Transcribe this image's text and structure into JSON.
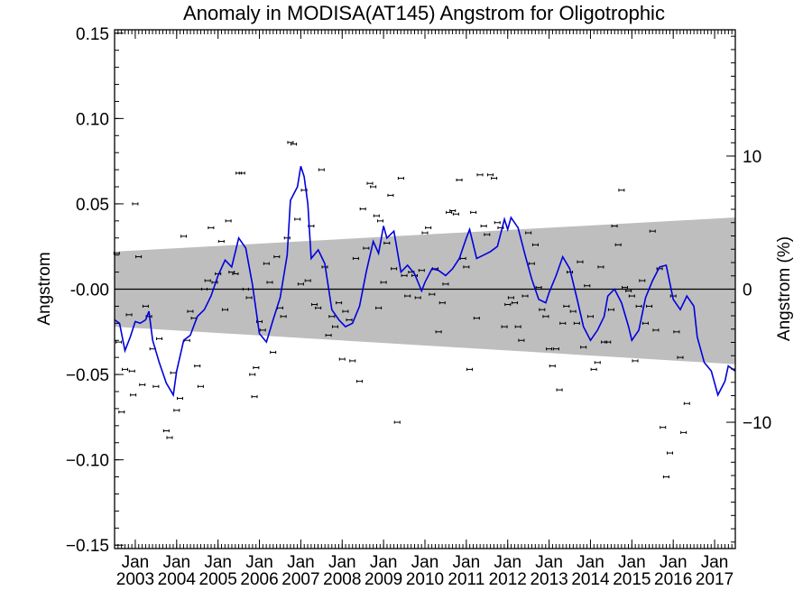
{
  "chart_data": {
    "type": "line",
    "title": "Anomaly in MODISA(AT145) Angstrom for Oligotrophic",
    "ylabel": "Angstrom",
    "ylabel_right": "Angstrom (%)",
    "ylim": [
      -0.152,
      0.152
    ],
    "y_ticks": [
      0.15,
      0.1,
      0.05,
      -0.0,
      -0.05,
      -0.1,
      -0.15
    ],
    "y_tick_labels": [
      "0.15",
      "0.10",
      "0.05",
      "-0.00",
      "−0.05",
      "−0.10",
      "−0.15"
    ],
    "right_ticks": [
      10,
      0,
      -10
    ],
    "right_tick_labels": [
      "10",
      "0",
      "−10"
    ],
    "right_scale_fraction_per_unit": 0.0078,
    "xlim": [
      2002.5,
      2017.5
    ],
    "x_ticks": [
      2003,
      2004,
      2005,
      2006,
      2007,
      2008,
      2009,
      2010,
      2011,
      2012,
      2013,
      2014,
      2015,
      2016,
      2017
    ],
    "x_tick_month": "Jan",
    "x_tick_years": [
      "2003",
      "2004",
      "2005",
      "2006",
      "2007",
      "2008",
      "2009",
      "2010",
      "2011",
      "2012",
      "2013",
      "2014",
      "2015",
      "2016",
      "2017"
    ],
    "zero_line": 0,
    "band": {
      "color": "#bebebe",
      "x": [
        2002.5,
        2017.5
      ],
      "upper": [
        0.022,
        0.042
      ],
      "lower": [
        -0.022,
        -0.044
      ]
    },
    "series": [
      {
        "color": "#0000dd",
        "style": "line",
        "points": [
          [
            2002.5,
            -0.018
          ],
          [
            2002.62,
            -0.02
          ],
          [
            2002.75,
            -0.036
          ],
          [
            2002.88,
            -0.028
          ],
          [
            2003.0,
            -0.019
          ],
          [
            2003.12,
            -0.02
          ],
          [
            2003.25,
            -0.018
          ],
          [
            2003.33,
            -0.013
          ],
          [
            2003.42,
            -0.03
          ],
          [
            2003.58,
            -0.043
          ],
          [
            2003.75,
            -0.055
          ],
          [
            2003.92,
            -0.062
          ],
          [
            2004.0,
            -0.048
          ],
          [
            2004.17,
            -0.03
          ],
          [
            2004.33,
            -0.027
          ],
          [
            2004.5,
            -0.016
          ],
          [
            2004.67,
            -0.012
          ],
          [
            2004.83,
            -0.004
          ],
          [
            2005.0,
            0.008
          ],
          [
            2005.17,
            0.017
          ],
          [
            2005.33,
            0.013
          ],
          [
            2005.5,
            0.03
          ],
          [
            2005.67,
            0.024
          ],
          [
            2005.83,
            0.003
          ],
          [
            2006.0,
            -0.026
          ],
          [
            2006.17,
            -0.031
          ],
          [
            2006.33,
            -0.018
          ],
          [
            2006.5,
            -0.005
          ],
          [
            2006.67,
            0.02
          ],
          [
            2006.75,
            0.052
          ],
          [
            2006.92,
            0.06
          ],
          [
            2007.0,
            0.072
          ],
          [
            2007.08,
            0.066
          ],
          [
            2007.17,
            0.05
          ],
          [
            2007.25,
            0.018
          ],
          [
            2007.42,
            0.023
          ],
          [
            2007.58,
            0.015
          ],
          [
            2007.75,
            -0.012
          ],
          [
            2007.92,
            -0.018
          ],
          [
            2008.08,
            -0.022
          ],
          [
            2008.25,
            -0.02
          ],
          [
            2008.42,
            -0.01
          ],
          [
            2008.58,
            0.01
          ],
          [
            2008.75,
            0.028
          ],
          [
            2008.88,
            0.021
          ],
          [
            2009.0,
            0.037
          ],
          [
            2009.08,
            0.03
          ],
          [
            2009.25,
            0.034
          ],
          [
            2009.42,
            0.01
          ],
          [
            2009.58,
            0.014
          ],
          [
            2009.75,
            0.009
          ],
          [
            2009.92,
            -0.001
          ],
          [
            2010.0,
            0.004
          ],
          [
            2010.17,
            0.012
          ],
          [
            2010.33,
            0.011
          ],
          [
            2010.5,
            0.008
          ],
          [
            2010.67,
            0.012
          ],
          [
            2010.83,
            0.018
          ],
          [
            2011.0,
            0.03
          ],
          [
            2011.08,
            0.035
          ],
          [
            2011.25,
            0.018
          ],
          [
            2011.42,
            0.02
          ],
          [
            2011.58,
            0.022
          ],
          [
            2011.75,
            0.025
          ],
          [
            2011.92,
            0.041
          ],
          [
            2012.0,
            0.035
          ],
          [
            2012.08,
            0.042
          ],
          [
            2012.25,
            0.036
          ],
          [
            2012.42,
            0.02
          ],
          [
            2012.58,
            0.006
          ],
          [
            2012.75,
            -0.006
          ],
          [
            2012.92,
            -0.008
          ],
          [
            2013.0,
            -0.002
          ],
          [
            2013.17,
            0.008
          ],
          [
            2013.33,
            0.019
          ],
          [
            2013.5,
            0.012
          ],
          [
            2013.67,
            -0.005
          ],
          [
            2013.83,
            -0.022
          ],
          [
            2014.0,
            -0.03
          ],
          [
            2014.17,
            -0.024
          ],
          [
            2014.33,
            -0.016
          ],
          [
            2014.42,
            -0.004
          ],
          [
            2014.58,
            0.0
          ],
          [
            2014.75,
            -0.008
          ],
          [
            2014.92,
            -0.022
          ],
          [
            2015.0,
            -0.03
          ],
          [
            2015.17,
            -0.024
          ],
          [
            2015.33,
            -0.005
          ],
          [
            2015.5,
            0.005
          ],
          [
            2015.67,
            0.013
          ],
          [
            2015.83,
            0.014
          ],
          [
            2016.0,
            -0.006
          ],
          [
            2016.17,
            -0.012
          ],
          [
            2016.33,
            -0.004
          ],
          [
            2016.5,
            -0.01
          ],
          [
            2016.58,
            -0.028
          ],
          [
            2016.75,
            -0.043
          ],
          [
            2016.92,
            -0.048
          ],
          [
            2017.08,
            -0.062
          ],
          [
            2017.25,
            -0.054
          ],
          [
            2017.33,
            -0.045
          ],
          [
            2017.5,
            -0.048
          ]
        ]
      },
      {
        "color": "#000000",
        "style": "errorbar-markers",
        "points": [
          [
            2002.55,
            0.021
          ],
          [
            2002.6,
            -0.031
          ],
          [
            2002.67,
            -0.072
          ],
          [
            2002.75,
            -0.047
          ],
          [
            2002.85,
            -0.015
          ],
          [
            2002.92,
            -0.048
          ],
          [
            2002.95,
            -0.062
          ],
          [
            2003.0,
            0.05
          ],
          [
            2003.08,
            0.019
          ],
          [
            2003.17,
            -0.056
          ],
          [
            2003.25,
            -0.01
          ],
          [
            2003.33,
            -0.016
          ],
          [
            2003.42,
            -0.035
          ],
          [
            2003.5,
            -0.057
          ],
          [
            2003.58,
            -0.029
          ],
          [
            2003.75,
            -0.083
          ],
          [
            2003.83,
            -0.087
          ],
          [
            2003.92,
            -0.049
          ],
          [
            2004.0,
            -0.071
          ],
          [
            2004.08,
            -0.064
          ],
          [
            2004.17,
            0.031
          ],
          [
            2004.25,
            -0.03
          ],
          [
            2004.33,
            -0.013
          ],
          [
            2004.42,
            -0.017
          ],
          [
            2004.5,
            -0.045
          ],
          [
            2004.58,
            -0.057
          ],
          [
            2004.67,
            0.0
          ],
          [
            2004.75,
            0.005
          ],
          [
            2004.83,
            0.036
          ],
          [
            2004.92,
            0.004
          ],
          [
            2005.0,
            0.009
          ],
          [
            2005.08,
            0.028
          ],
          [
            2005.17,
            -0.012
          ],
          [
            2005.25,
            0.04
          ],
          [
            2005.33,
            0.01
          ],
          [
            2005.42,
            0.009
          ],
          [
            2005.5,
            0.068
          ],
          [
            2005.58,
            0.068
          ],
          [
            2005.67,
            0.0
          ],
          [
            2005.75,
            -0.005
          ],
          [
            2005.83,
            -0.05
          ],
          [
            2005.88,
            -0.063
          ],
          [
            2005.92,
            -0.046
          ],
          [
            2006.0,
            -0.019
          ],
          [
            2006.08,
            -0.024
          ],
          [
            2006.17,
            0.015
          ],
          [
            2006.25,
            0.004
          ],
          [
            2006.33,
            -0.037
          ],
          [
            2006.42,
            0.019
          ],
          [
            2006.5,
            -0.011
          ],
          [
            2006.58,
            -0.016
          ],
          [
            2006.67,
            0.03
          ],
          [
            2006.75,
            0.086
          ],
          [
            2006.83,
            0.085
          ],
          [
            2006.92,
            0.041
          ],
          [
            2007.0,
            0.003
          ],
          [
            2007.08,
            0.058
          ],
          [
            2007.17,
            0.005
          ],
          [
            2007.25,
            0.037
          ],
          [
            2007.33,
            -0.009
          ],
          [
            2007.42,
            -0.011
          ],
          [
            2007.5,
            0.07
          ],
          [
            2007.58,
            0.013
          ],
          [
            2007.67,
            -0.027
          ],
          [
            2007.75,
            -0.016
          ],
          [
            2007.83,
            -0.022
          ],
          [
            2007.92,
            -0.008
          ],
          [
            2008.0,
            -0.041
          ],
          [
            2008.08,
            -0.013
          ],
          [
            2008.17,
            -0.018
          ],
          [
            2008.25,
            -0.042
          ],
          [
            2008.33,
            0.018
          ],
          [
            2008.42,
            -0.054
          ],
          [
            2008.5,
            0.047
          ],
          [
            2008.58,
            0.024
          ],
          [
            2008.67,
            0.062
          ],
          [
            2008.75,
            0.06
          ],
          [
            2008.83,
            0.043
          ],
          [
            2008.88,
            -0.011
          ],
          [
            2008.92,
            0.04
          ],
          [
            2009.0,
            0.004
          ],
          [
            2009.08,
            0.027
          ],
          [
            2009.17,
            0.055
          ],
          [
            2009.25,
            0.012
          ],
          [
            2009.33,
            -0.078
          ],
          [
            2009.42,
            0.065
          ],
          [
            2009.5,
            0.008
          ],
          [
            2009.58,
            -0.004
          ],
          [
            2009.67,
            0.01
          ],
          [
            2009.75,
            0.008
          ],
          [
            2009.83,
            -0.005
          ],
          [
            2009.92,
            0.011
          ],
          [
            2010.0,
            0.033
          ],
          [
            2010.08,
            0.036
          ],
          [
            2010.17,
            -0.003
          ],
          [
            2010.25,
            0.012
          ],
          [
            2010.33,
            -0.025
          ],
          [
            2010.42,
            -0.008
          ],
          [
            2010.5,
            0.003
          ],
          [
            2010.58,
            0.045
          ],
          [
            2010.67,
            0.046
          ],
          [
            2010.75,
            0.044
          ],
          [
            2010.83,
            0.064
          ],
          [
            2010.92,
            0.018
          ],
          [
            2011.0,
            0.013
          ],
          [
            2011.08,
            -0.047
          ],
          [
            2011.17,
            0.045
          ],
          [
            2011.25,
            -0.017
          ],
          [
            2011.33,
            0.067
          ],
          [
            2011.42,
            0.037
          ],
          [
            2011.5,
            0.032
          ],
          [
            2011.58,
            0.067
          ],
          [
            2011.67,
            0.065
          ],
          [
            2011.75,
            0.039
          ],
          [
            2011.83,
            0.036
          ],
          [
            2011.92,
            -0.022
          ],
          [
            2012.0,
            -0.009
          ],
          [
            2012.08,
            -0.005
          ],
          [
            2012.17,
            -0.008
          ],
          [
            2012.25,
            -0.022
          ],
          [
            2012.33,
            -0.03
          ],
          [
            2012.42,
            -0.004
          ],
          [
            2012.5,
            0.033
          ],
          [
            2012.58,
            0.015
          ],
          [
            2012.67,
            0.026
          ],
          [
            2012.75,
            0.001
          ],
          [
            2012.83,
            -0.012
          ],
          [
            2012.92,
            -0.016
          ],
          [
            2013.0,
            -0.035
          ],
          [
            2013.08,
            -0.045
          ],
          [
            2013.17,
            -0.035
          ],
          [
            2013.25,
            -0.059
          ],
          [
            2013.33,
            -0.02
          ],
          [
            2013.42,
            -0.01
          ],
          [
            2013.5,
            0.01
          ],
          [
            2013.58,
            -0.013
          ],
          [
            2013.67,
            -0.02
          ],
          [
            2013.75,
            0.016
          ],
          [
            2013.83,
            -0.034
          ],
          [
            2013.92,
            0.002
          ],
          [
            2014.0,
            -0.016
          ],
          [
            2014.08,
            -0.047
          ],
          [
            2014.17,
            -0.043
          ],
          [
            2014.25,
            0.013
          ],
          [
            2014.33,
            -0.031
          ],
          [
            2014.42,
            -0.031
          ],
          [
            2014.5,
            -0.012
          ],
          [
            2014.58,
            0.037
          ],
          [
            2014.67,
            0.026
          ],
          [
            2014.75,
            0.058
          ],
          [
            2014.83,
            0.001
          ],
          [
            2014.92,
            -0.001
          ],
          [
            2015.0,
            -0.004
          ],
          [
            2015.08,
            -0.042
          ],
          [
            2015.17,
            -0.01
          ],
          [
            2015.25,
            0.005
          ],
          [
            2015.33,
            -0.02
          ],
          [
            2015.42,
            -0.01
          ],
          [
            2015.5,
            0.034
          ],
          [
            2015.58,
            -0.024
          ],
          [
            2015.67,
            0.012
          ],
          [
            2015.75,
            -0.081
          ],
          [
            2015.83,
            -0.11
          ],
          [
            2015.92,
            -0.096
          ],
          [
            2016.0,
            -0.004
          ],
          [
            2016.08,
            -0.025
          ],
          [
            2016.17,
            -0.04
          ],
          [
            2016.25,
            -0.084
          ],
          [
            2016.33,
            -0.067
          ]
        ]
      }
    ]
  }
}
